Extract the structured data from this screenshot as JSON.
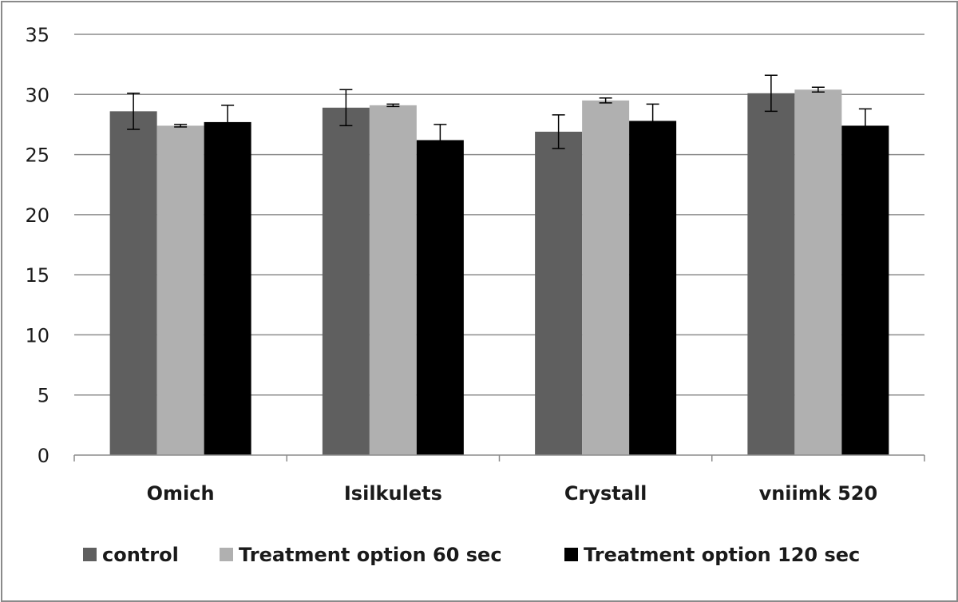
{
  "chart_data": {
    "type": "bar",
    "title": "",
    "xlabel": "",
    "ylabel": "",
    "ylim": [
      0,
      35
    ],
    "yticks": [
      0,
      5,
      10,
      15,
      20,
      25,
      30,
      35
    ],
    "grid": true,
    "legend_position": "bottom",
    "categories": [
      "Omich",
      "Isilkulets",
      "Crystall",
      "vniimk 520"
    ],
    "series": [
      {
        "name": "control",
        "color": "#5f5f5f",
        "values": [
          28.6,
          28.9,
          26.9,
          30.1
        ],
        "errors": [
          1.5,
          1.5,
          1.4,
          1.5
        ]
      },
      {
        "name": "Treatment option 60 sec",
        "color": "#b0b0b0",
        "values": [
          27.4,
          29.1,
          29.5,
          30.4
        ],
        "errors": [
          0.1,
          0.1,
          0.2,
          0.2
        ]
      },
      {
        "name": "Treatment option 120 sec",
        "color": "#000000",
        "values": [
          27.7,
          26.2,
          27.8,
          27.4
        ],
        "errors": [
          1.4,
          1.3,
          1.4,
          1.4
        ]
      }
    ]
  }
}
